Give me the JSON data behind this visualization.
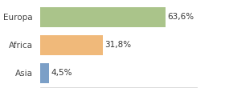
{
  "categories": [
    "Asia",
    "Africa",
    "Europa"
  ],
  "values": [
    4.5,
    31.8,
    63.6
  ],
  "labels": [
    "4,5%",
    "31,8%",
    "63,6%"
  ],
  "bar_colors": [
    "#7b9fc7",
    "#f0b97a",
    "#aac48a"
  ],
  "background_color": "#ffffff",
  "xlim": [
    0,
    80
  ],
  "bar_height": 0.72,
  "label_fontsize": 7.5,
  "tick_fontsize": 7.5,
  "figsize": [
    2.8,
    1.2
  ],
  "dpi": 100
}
